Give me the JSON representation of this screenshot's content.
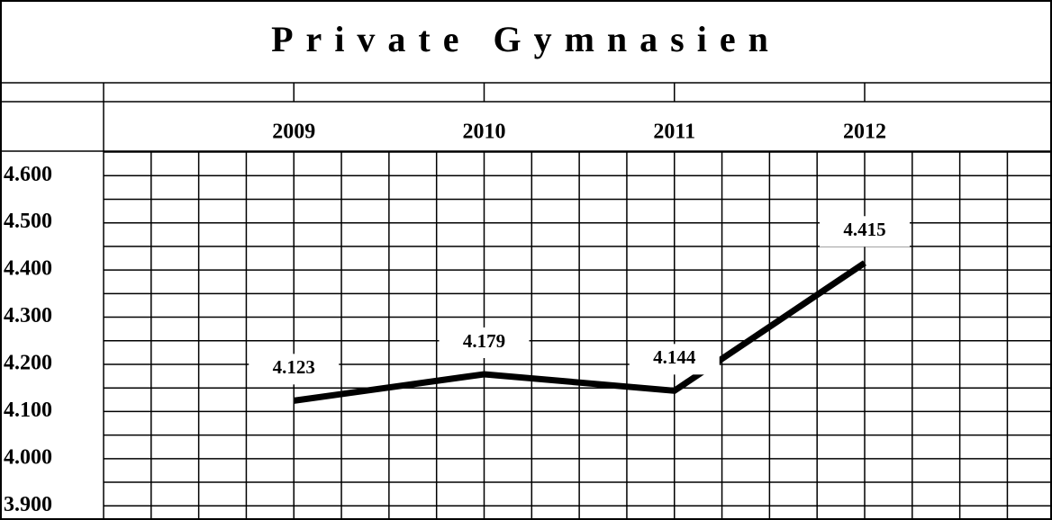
{
  "chart_data": {
    "type": "line",
    "title": "Private Gymnasien",
    "categories": [
      "2009",
      "2010",
      "2011",
      "2012"
    ],
    "values": [
      4123,
      4179,
      4144,
      4415
    ],
    "value_labels": [
      "4.123",
      "4.179",
      "4.144",
      "4.415"
    ],
    "color": "#000000",
    "ylim": [
      3870,
      4652
    ],
    "yticks": [
      {
        "value": 4600,
        "label": "4.600"
      },
      {
        "value": 4500,
        "label": "4.500"
      },
      {
        "value": 4400,
        "label": "4.400"
      },
      {
        "value": 4300,
        "label": "4.300"
      },
      {
        "value": 4200,
        "label": "4.200"
      },
      {
        "value": 4100,
        "label": "4.100"
      },
      {
        "value": 4000,
        "label": "4.000"
      },
      {
        "value": 3900,
        "label": "3.900"
      }
    ],
    "grid": true
  }
}
